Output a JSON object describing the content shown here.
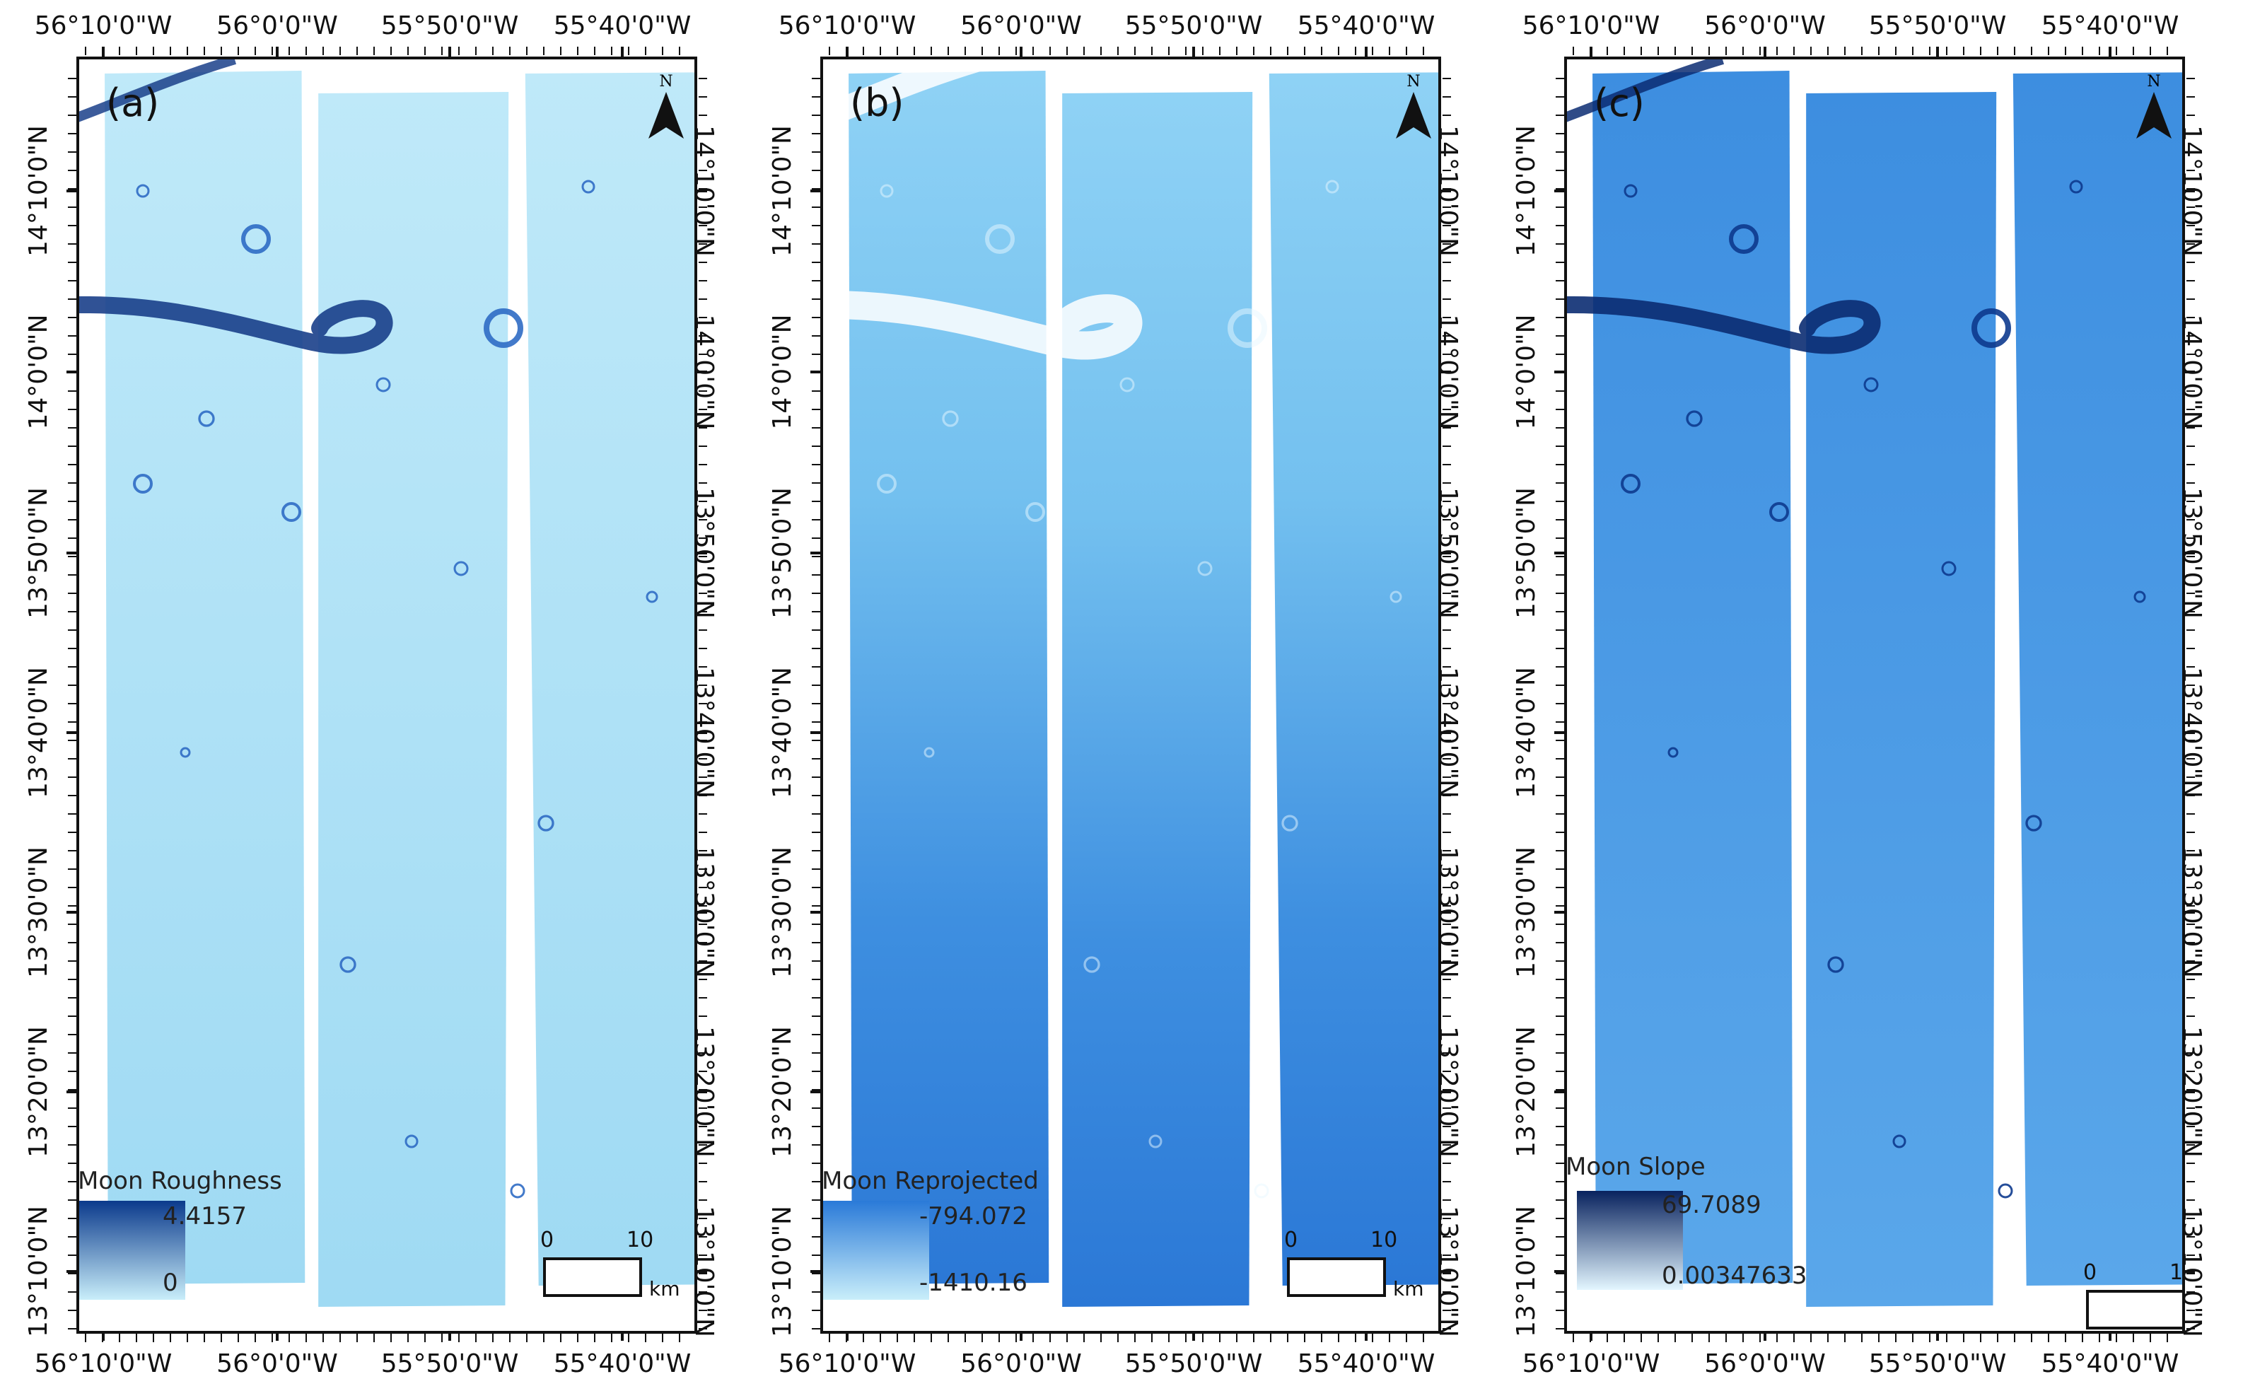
{
  "panels": [
    {
      "label": "(a)",
      "legend": {
        "title": "Moon Roughness",
        "max": "4.4157",
        "min": "0",
        "max_color": "#0b3a8c",
        "min_color": "#c9eefa"
      },
      "style": "roughness"
    },
    {
      "label": "(b)",
      "legend": {
        "title": "Moon Reprojected",
        "max": "-794.072",
        "min": "-1410.16",
        "max_color": "#2a7ad8",
        "min_color": "#c9eefa"
      },
      "style": "elevation"
    },
    {
      "label": "(c)",
      "legend": {
        "title": "Moon Slope",
        "max": "69.7089",
        "min": "0.00347633",
        "max_color": "#08225e",
        "min_color": "#e3f6ff"
      },
      "style": "slope"
    }
  ],
  "lon_labels": [
    "56°10'0\"W",
    "56°0'0\"W",
    "55°50'0\"W",
    "55°40'0\"W"
  ],
  "lat_labels": [
    "14°10'0\"N",
    "14°0'0\"N",
    "13°50'0\"N",
    "13°40'0\"N",
    "13°30'0\"N",
    "13°20'0\"N",
    "13°10'0\"N"
  ],
  "north_label": "N",
  "scale": {
    "zero": "0",
    "ten": "10",
    "unit": "km"
  },
  "colors": {
    "roughness_base": "#bfe9f9",
    "elevation_base": "#5fb3ea",
    "slope_base": "#3d8ee0"
  }
}
